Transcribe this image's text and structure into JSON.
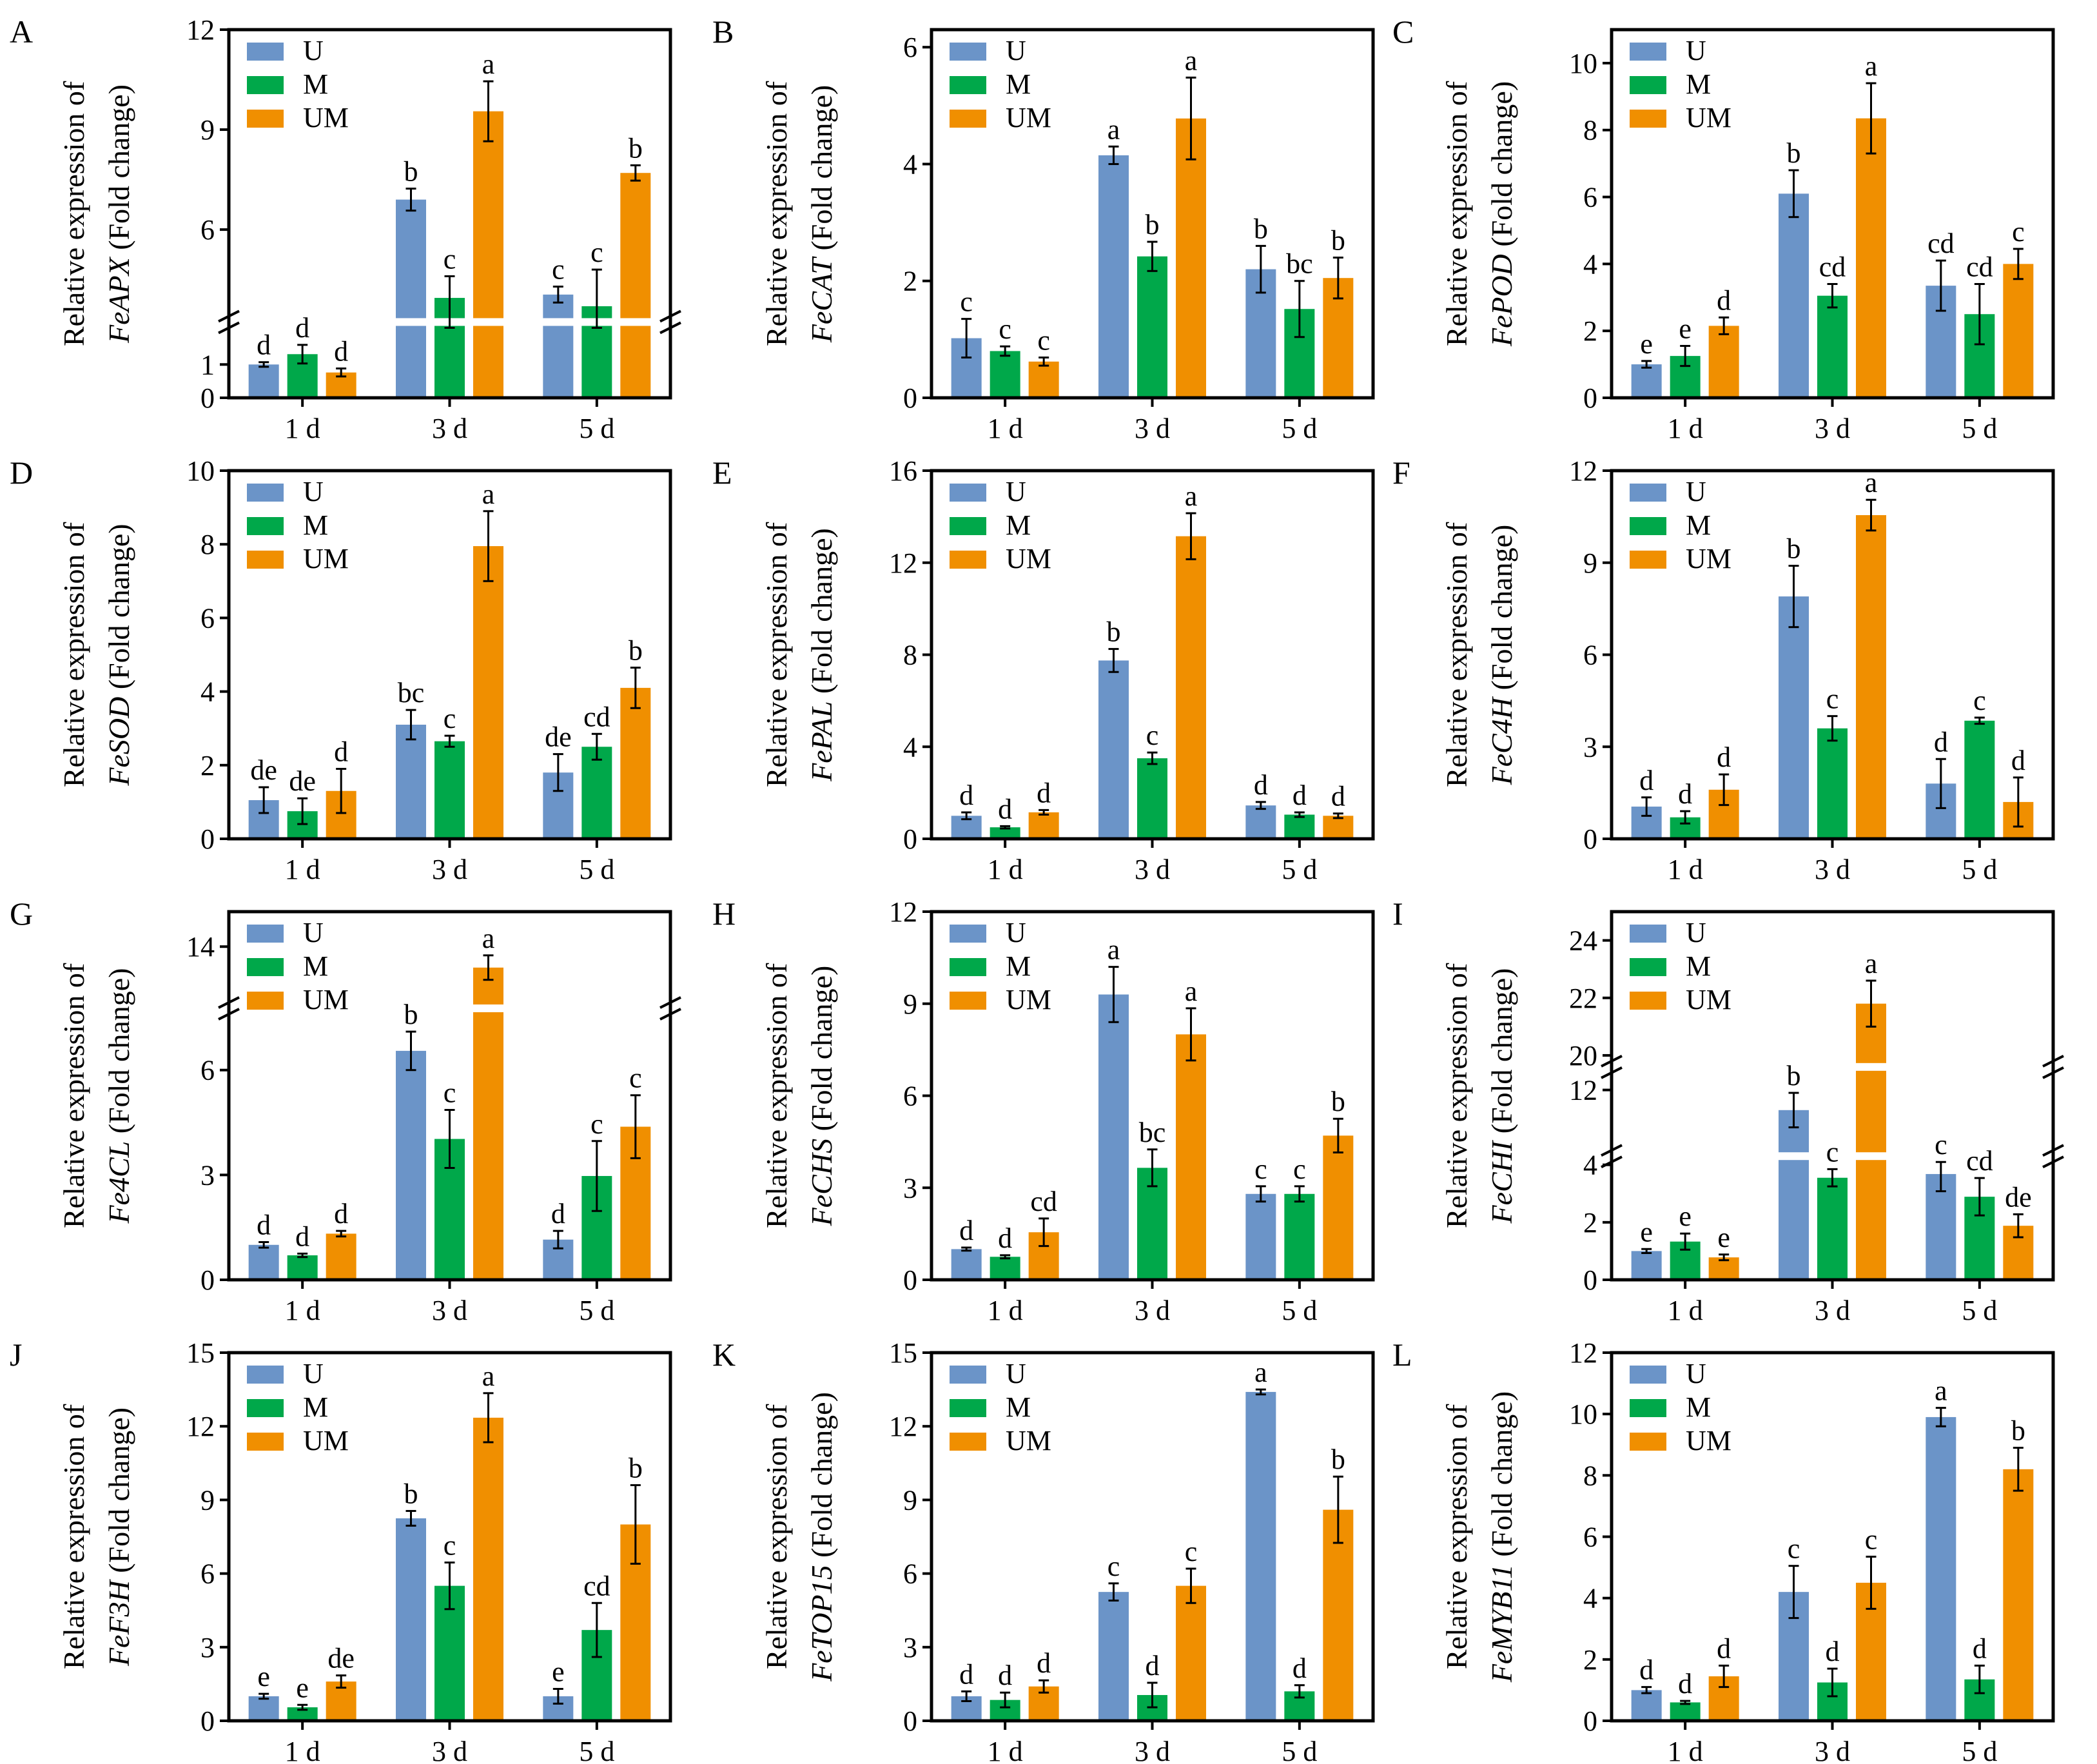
{
  "legend": [
    "U",
    "M",
    "UM"
  ],
  "colors": {
    "U": "#6b94c8",
    "M": "#00a84a",
    "UM": "#f08f00"
  },
  "ylabel_prefix": "Relative expression of",
  "ylabel_suffix": " (Fold change)",
  "chart_data": [
    {
      "type": "bar",
      "panel": "A",
      "gene": "FeAPX",
      "categories": [
        "1 d",
        "3 d",
        "5 d"
      ],
      "ylim": [
        0,
        12
      ],
      "segments": [
        [
          0,
          2.1
        ],
        [
          3.4,
          12
        ]
      ],
      "ticks": [
        0,
        1,
        6,
        9,
        12
      ],
      "series": [
        {
          "name": "U",
          "values": [
            1.0,
            6.9,
            4.05
          ],
          "errors": [
            0.07,
            0.33,
            0.24
          ],
          "letters": [
            "d",
            "b",
            "c"
          ]
        },
        {
          "name": "M",
          "values": [
            1.31,
            3.95,
            3.7
          ],
          "errors": [
            0.28,
            0.65,
            1.1
          ],
          "letters": [
            "d",
            "c",
            "c"
          ]
        },
        {
          "name": "UM",
          "values": [
            0.76,
            9.55,
            7.7
          ],
          "errors": [
            0.12,
            0.9,
            0.23
          ],
          "letters": [
            "d",
            "a",
            "b"
          ]
        }
      ]
    },
    {
      "type": "bar",
      "panel": "B",
      "gene": "FeCAT",
      "categories": [
        "1 d",
        "3 d",
        "5 d"
      ],
      "ylim": [
        0,
        6.3
      ],
      "ticks": [
        0,
        2,
        4,
        6
      ],
      "series": [
        {
          "name": "U",
          "values": [
            1.02,
            4.15,
            2.2
          ],
          "errors": [
            0.33,
            0.15,
            0.4
          ],
          "letters": [
            "c",
            "a",
            "b"
          ]
        },
        {
          "name": "M",
          "values": [
            0.8,
            2.42,
            1.52
          ],
          "errors": [
            0.08,
            0.25,
            0.48
          ],
          "letters": [
            "c",
            "b",
            "bc"
          ]
        },
        {
          "name": "UM",
          "values": [
            0.62,
            4.78,
            2.05
          ],
          "errors": [
            0.07,
            0.7,
            0.35
          ],
          "letters": [
            "c",
            "a",
            "b"
          ]
        }
      ]
    },
    {
      "type": "bar",
      "panel": "C",
      "gene": "FePOD",
      "categories": [
        "1 d",
        "3 d",
        "5 d"
      ],
      "ylim": [
        0,
        11
      ],
      "ticks": [
        0,
        2,
        4,
        6,
        8,
        10
      ],
      "series": [
        {
          "name": "U",
          "values": [
            1.0,
            6.1,
            3.35
          ],
          "errors": [
            0.1,
            0.7,
            0.75
          ],
          "letters": [
            "e",
            "b",
            "cd"
          ]
        },
        {
          "name": "M",
          "values": [
            1.25,
            3.05,
            2.5
          ],
          "errors": [
            0.3,
            0.35,
            0.9
          ],
          "letters": [
            "e",
            "cd",
            "cd"
          ]
        },
        {
          "name": "UM",
          "values": [
            2.15,
            8.35,
            4.0
          ],
          "errors": [
            0.25,
            1.05,
            0.45
          ],
          "letters": [
            "d",
            "a",
            "c"
          ]
        }
      ]
    },
    {
      "type": "bar",
      "panel": "D",
      "gene": "FeSOD",
      "categories": [
        "1 d",
        "3 d",
        "5 d"
      ],
      "ylim": [
        0,
        10
      ],
      "ticks": [
        0,
        2,
        4,
        6,
        8,
        10
      ],
      "series": [
        {
          "name": "U",
          "values": [
            1.05,
            3.1,
            1.8
          ],
          "errors": [
            0.35,
            0.4,
            0.5
          ],
          "letters": [
            "de",
            "bc",
            "de"
          ]
        },
        {
          "name": "M",
          "values": [
            0.75,
            2.65,
            2.5
          ],
          "errors": [
            0.35,
            0.15,
            0.35
          ],
          "letters": [
            "de",
            "c",
            "cd"
          ]
        },
        {
          "name": "UM",
          "values": [
            1.3,
            7.95,
            4.1
          ],
          "errors": [
            0.6,
            0.95,
            0.55
          ],
          "letters": [
            "d",
            "a",
            "b"
          ]
        }
      ]
    },
    {
      "type": "bar",
      "panel": "E",
      "gene": "FePAL",
      "categories": [
        "1 d",
        "3 d",
        "5 d"
      ],
      "ylim": [
        0,
        16
      ],
      "ticks": [
        0,
        4,
        8,
        12,
        16
      ],
      "series": [
        {
          "name": "U",
          "values": [
            1.0,
            7.75,
            1.45
          ],
          "errors": [
            0.15,
            0.5,
            0.15
          ],
          "letters": [
            "d",
            "b",
            "d"
          ]
        },
        {
          "name": "M",
          "values": [
            0.5,
            3.5,
            1.05
          ],
          "errors": [
            0.05,
            0.25,
            0.1
          ],
          "letters": [
            "d",
            "c",
            "d"
          ]
        },
        {
          "name": "UM",
          "values": [
            1.15,
            13.15,
            1.0
          ],
          "errors": [
            0.1,
            1.0,
            0.1
          ],
          "letters": [
            "d",
            "a",
            "d"
          ]
        }
      ]
    },
    {
      "type": "bar",
      "panel": "F",
      "gene": "FeC4H",
      "categories": [
        "1 d",
        "3 d",
        "5 d"
      ],
      "ylim": [
        0,
        12
      ],
      "ticks": [
        0,
        3,
        6,
        9,
        12
      ],
      "series": [
        {
          "name": "U",
          "values": [
            1.05,
            7.9,
            1.8
          ],
          "errors": [
            0.3,
            1.0,
            0.8
          ],
          "letters": [
            "d",
            "b",
            "d"
          ]
        },
        {
          "name": "M",
          "values": [
            0.7,
            3.6,
            3.85
          ],
          "errors": [
            0.2,
            0.4,
            0.1
          ],
          "letters": [
            "d",
            "c",
            "c"
          ]
        },
        {
          "name": "UM",
          "values": [
            1.6,
            10.55,
            1.2
          ],
          "errors": [
            0.5,
            0.5,
            0.8
          ],
          "letters": [
            "d",
            "a",
            "d"
          ]
        }
      ]
    },
    {
      "type": "bar",
      "panel": "G",
      "gene": "Fe4CL",
      "categories": [
        "1 d",
        "3 d",
        "5 d"
      ],
      "ylim": [
        0,
        15
      ],
      "segments": [
        [
          0,
          7.6
        ],
        [
          12.4,
          15
        ]
      ],
      "ticks": [
        0,
        3,
        6,
        14
      ],
      "series": [
        {
          "name": "U",
          "values": [
            1.0,
            6.55,
            1.15
          ],
          "errors": [
            0.08,
            0.55,
            0.25
          ],
          "letters": [
            "d",
            "b",
            "d"
          ]
        },
        {
          "name": "M",
          "values": [
            0.7,
            4.03,
            2.97
          ],
          "errors": [
            0.05,
            0.83,
            1.0
          ],
          "letters": [
            "d",
            "c",
            "c"
          ]
        },
        {
          "name": "UM",
          "values": [
            1.32,
            13.4,
            4.38
          ],
          "errors": [
            0.08,
            0.35,
            0.9
          ],
          "letters": [
            "d",
            "a",
            "c"
          ]
        }
      ]
    },
    {
      "type": "bar",
      "panel": "H",
      "gene": "FeCHS",
      "categories": [
        "1 d",
        "3 d",
        "5 d"
      ],
      "ylim": [
        0,
        12
      ],
      "ticks": [
        0,
        3,
        6,
        9,
        12
      ],
      "series": [
        {
          "name": "U",
          "values": [
            1.0,
            9.3,
            2.8
          ],
          "errors": [
            0.05,
            0.9,
            0.25
          ],
          "letters": [
            "d",
            "a",
            "c"
          ]
        },
        {
          "name": "M",
          "values": [
            0.75,
            3.65,
            2.8
          ],
          "errors": [
            0.05,
            0.6,
            0.25
          ],
          "letters": [
            "d",
            "bc",
            "c"
          ]
        },
        {
          "name": "UM",
          "values": [
            1.55,
            8.0,
            4.7
          ],
          "errors": [
            0.45,
            0.85,
            0.55
          ],
          "letters": [
            "cd",
            "a",
            "b"
          ]
        }
      ]
    },
    {
      "type": "bar",
      "panel": "I",
      "gene": "FeCHI",
      "categories": [
        "1 d",
        "3 d",
        "5 d"
      ],
      "ylim": [
        0,
        25
      ],
      "segments": [
        [
          0,
          4.1
        ],
        [
          9.9,
          12.6
        ],
        [
          19.8,
          25
        ]
      ],
      "ticks": [
        0,
        2,
        4,
        12,
        20,
        22,
        24
      ],
      "series": [
        {
          "name": "U",
          "values": [
            1.0,
            11.3,
            3.68
          ],
          "errors": [
            0.07,
            0.6,
            0.6
          ],
          "letters": [
            "e",
            "b",
            "c"
          ]
        },
        {
          "name": "M",
          "values": [
            1.33,
            3.55,
            2.89
          ],
          "errors": [
            0.28,
            0.3,
            0.65
          ],
          "letters": [
            "e",
            "c",
            "cd"
          ]
        },
        {
          "name": "UM",
          "values": [
            0.78,
            21.8,
            1.88
          ],
          "errors": [
            0.1,
            0.8,
            0.4
          ],
          "letters": [
            "e",
            "a",
            "de"
          ]
        }
      ]
    },
    {
      "type": "bar",
      "panel": "J",
      "gene": "FeF3H",
      "categories": [
        "1 d",
        "3 d",
        "5 d"
      ],
      "ylim": [
        0,
        15
      ],
      "ticks": [
        0,
        3,
        6,
        9,
        12,
        15
      ],
      "series": [
        {
          "name": "U",
          "values": [
            1.0,
            8.25,
            1.0
          ],
          "errors": [
            0.1,
            0.3,
            0.3
          ],
          "letters": [
            "e",
            "b",
            "e"
          ]
        },
        {
          "name": "M",
          "values": [
            0.55,
            5.5,
            3.7
          ],
          "errors": [
            0.1,
            0.95,
            1.1
          ],
          "letters": [
            "e",
            "c",
            "cd"
          ]
        },
        {
          "name": "UM",
          "values": [
            1.6,
            12.35,
            8.0
          ],
          "errors": [
            0.25,
            1.0,
            1.6
          ],
          "letters": [
            "de",
            "a",
            "b"
          ]
        }
      ]
    },
    {
      "type": "bar",
      "panel": "K",
      "gene": "FeTOP15",
      "categories": [
        "1 d",
        "3 d",
        "5 d"
      ],
      "ylim": [
        0,
        15
      ],
      "ticks": [
        0,
        3,
        6,
        9,
        12,
        15
      ],
      "series": [
        {
          "name": "U",
          "values": [
            1.0,
            5.25,
            13.4
          ],
          "errors": [
            0.2,
            0.35,
            0.1
          ],
          "letters": [
            "d",
            "c",
            "a"
          ]
        },
        {
          "name": "M",
          "values": [
            0.85,
            1.05,
            1.2
          ],
          "errors": [
            0.3,
            0.5,
            0.25
          ],
          "letters": [
            "d",
            "d",
            "d"
          ]
        },
        {
          "name": "UM",
          "values": [
            1.4,
            5.5,
            8.6
          ],
          "errors": [
            0.25,
            0.7,
            1.35
          ],
          "letters": [
            "d",
            "c",
            "b"
          ]
        }
      ]
    },
    {
      "type": "bar",
      "panel": "L",
      "gene": "FeMYB11",
      "categories": [
        "1 d",
        "3 d",
        "5 d"
      ],
      "ylim": [
        0,
        12
      ],
      "ticks": [
        0,
        2,
        4,
        6,
        8,
        10,
        12
      ],
      "series": [
        {
          "name": "U",
          "values": [
            1.0,
            4.2,
            9.9
          ],
          "errors": [
            0.1,
            0.85,
            0.3
          ],
          "letters": [
            "d",
            "c",
            "a"
          ]
        },
        {
          "name": "M",
          "values": [
            0.6,
            1.25,
            1.35
          ],
          "errors": [
            0.05,
            0.45,
            0.45
          ],
          "letters": [
            "d",
            "d",
            "d"
          ]
        },
        {
          "name": "UM",
          "values": [
            1.45,
            4.5,
            8.2
          ],
          "errors": [
            0.35,
            0.85,
            0.7
          ],
          "letters": [
            "d",
            "c",
            "b"
          ]
        }
      ]
    }
  ]
}
